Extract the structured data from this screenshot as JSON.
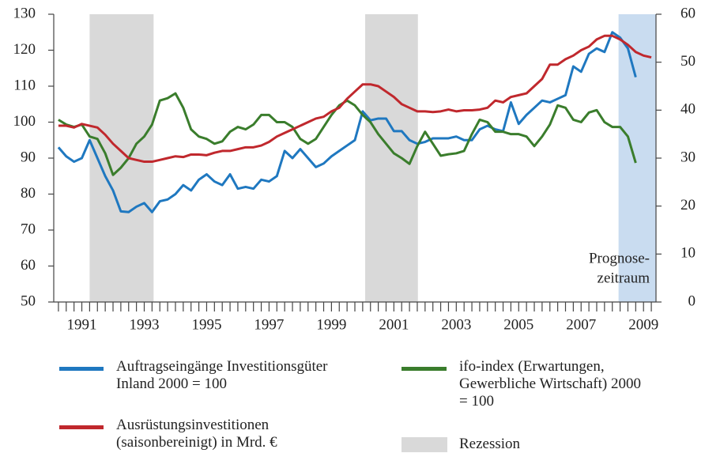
{
  "chart_data": {
    "type": "line",
    "xlim": [
      1990.6,
      2009.9
    ],
    "ylim": [
      50,
      130
    ],
    "yticks": [
      50,
      60,
      70,
      80,
      90,
      100,
      110,
      120,
      130
    ],
    "y2lim": [
      0,
      60
    ],
    "y2ticks": [
      0,
      10,
      20,
      30,
      40,
      50,
      60
    ],
    "xticks": [
      {
        "value": 1991.5,
        "label": "1991"
      },
      {
        "value": 1993.5,
        "label": "1993"
      },
      {
        "value": 1995.5,
        "label": "1995"
      },
      {
        "value": 1997.5,
        "label": "1997"
      },
      {
        "value": 1999.5,
        "label": "1999"
      },
      {
        "value": 2001.5,
        "label": "2001"
      },
      {
        "value": 2003.5,
        "label": "2003"
      },
      {
        "value": 2005.5,
        "label": "2005"
      },
      {
        "value": 2007.5,
        "label": "2007"
      },
      {
        "value": 2009.5,
        "label": "2009"
      }
    ],
    "x": [
      1990.75,
      1991,
      1991.25,
      1991.5,
      1991.75,
      1992,
      1992.25,
      1992.5,
      1992.75,
      1993,
      1993.25,
      1993.5,
      1993.75,
      1994,
      1994.25,
      1994.5,
      1994.75,
      1995,
      1995.25,
      1995.5,
      1995.75,
      1996,
      1996.25,
      1996.5,
      1996.75,
      1997,
      1997.25,
      1997.5,
      1997.75,
      1998,
      1998.25,
      1998.5,
      1998.75,
      1999,
      1999.25,
      1999.5,
      1999.75,
      2000,
      2000.25,
      2000.5,
      2000.75,
      2001,
      2001.25,
      2001.5,
      2001.75,
      2002,
      2002.25,
      2002.5,
      2002.75,
      2003,
      2003.25,
      2003.5,
      2003.75,
      2004,
      2004.25,
      2004.5,
      2004.75,
      2005,
      2005.25,
      2005.5,
      2005.75,
      2006,
      2006.25,
      2006.5,
      2006.75,
      2007,
      2007.25,
      2007.5,
      2007.75,
      2008,
      2008.25,
      2008.5,
      2008.75,
      2009,
      2009.25,
      2009.5,
      2009.75
    ],
    "series": [
      {
        "name": "Auftragseingänge Investitionsgüter Inland 2000 = 100",
        "color": "#1f78c0",
        "axis": "y",
        "values": [
          93,
          90.5,
          89,
          90,
          95,
          90,
          85,
          81,
          75.2,
          75,
          76.5,
          77.5,
          75,
          78,
          78.5,
          80,
          82.5,
          81,
          84,
          85.5,
          83.5,
          82.5,
          85.5,
          81.5,
          82,
          81.5,
          84,
          83.5,
          85,
          92,
          90,
          92.5,
          90,
          87.5,
          88.5,
          90.5,
          92,
          93.5,
          95,
          103,
          100.5,
          101,
          101,
          97.5,
          97.5,
          95,
          94,
          94.5,
          95.5,
          95.5,
          95.5,
          96,
          95,
          95,
          98,
          99,
          98,
          97.5,
          105.5,
          99.5,
          102,
          104,
          106,
          105.5,
          106.5,
          107.5,
          115.5,
          114,
          119,
          120.5,
          119.5,
          125,
          123.5,
          120.5,
          112.5,
          null,
          null
        ]
      },
      {
        "name": "ifo-index (Erwartungen, Gewerbliche Wirtschaft) 2000 = 100",
        "color": "#3a7d2c",
        "axis": "y2",
        "values": [
          38,
          37,
          36.5,
          37,
          34.5,
          34,
          31,
          26.5,
          28,
          30,
          33,
          34.5,
          37,
          42,
          42.5,
          43.5,
          40.5,
          36,
          34.5,
          34,
          33,
          33.5,
          35.5,
          36.5,
          36,
          37,
          39,
          39,
          37.5,
          37.5,
          36.5,
          34,
          33,
          34,
          36.5,
          39,
          41,
          42,
          41,
          39,
          37.5,
          35,
          33,
          31,
          30,
          28.8,
          32.5,
          35.5,
          33,
          30.5,
          30.8,
          31,
          31.5,
          35,
          38,
          37.5,
          35.5,
          35.5,
          35,
          35,
          34.5,
          32.5,
          34.5,
          37,
          41,
          40.5,
          38,
          37.5,
          39.5,
          40,
          37.5,
          36.5,
          36.5,
          34.5,
          29,
          null,
          null
        ]
      },
      {
        "name": "Ausrüstungsinvestitionen (saisonbereinigt) in Mrd. €",
        "color": "#c0282d",
        "axis": "y",
        "values": [
          99,
          99,
          98.5,
          99.5,
          99,
          98.5,
          96.5,
          94,
          92,
          90,
          89.5,
          89,
          89,
          89.5,
          90,
          90.5,
          90.3,
          91,
          91,
          90.8,
          91.5,
          92,
          92,
          92.5,
          93,
          93,
          93.5,
          94.5,
          96,
          97,
          98,
          99,
          100,
          101,
          101.5,
          103,
          104,
          106.5,
          108.5,
          110.5,
          110.5,
          110,
          108.5,
          107,
          105,
          104,
          103,
          103,
          102.8,
          103,
          103.5,
          103,
          103.3,
          103.3,
          103.5,
          104,
          106,
          105.5,
          107,
          107.5,
          108,
          110,
          112,
          116,
          116,
          117.5,
          118.5,
          120,
          121,
          123,
          124,
          124,
          123,
          121.5,
          119.5,
          118.5,
          118
        ]
      }
    ],
    "recessions": [
      {
        "range": [
          1991.75,
          1993.8
        ],
        "color": "#d9d9d9"
      },
      {
        "range": [
          2000.58,
          2002.27
        ],
        "color": "#d9d9d9"
      }
    ],
    "recession_label": "Rezession",
    "forecast": {
      "range": [
        2008.7,
        2009.9
      ],
      "color": "#c9dcf0",
      "label_lines": [
        "Prognose-",
        "zeitraum"
      ]
    }
  }
}
